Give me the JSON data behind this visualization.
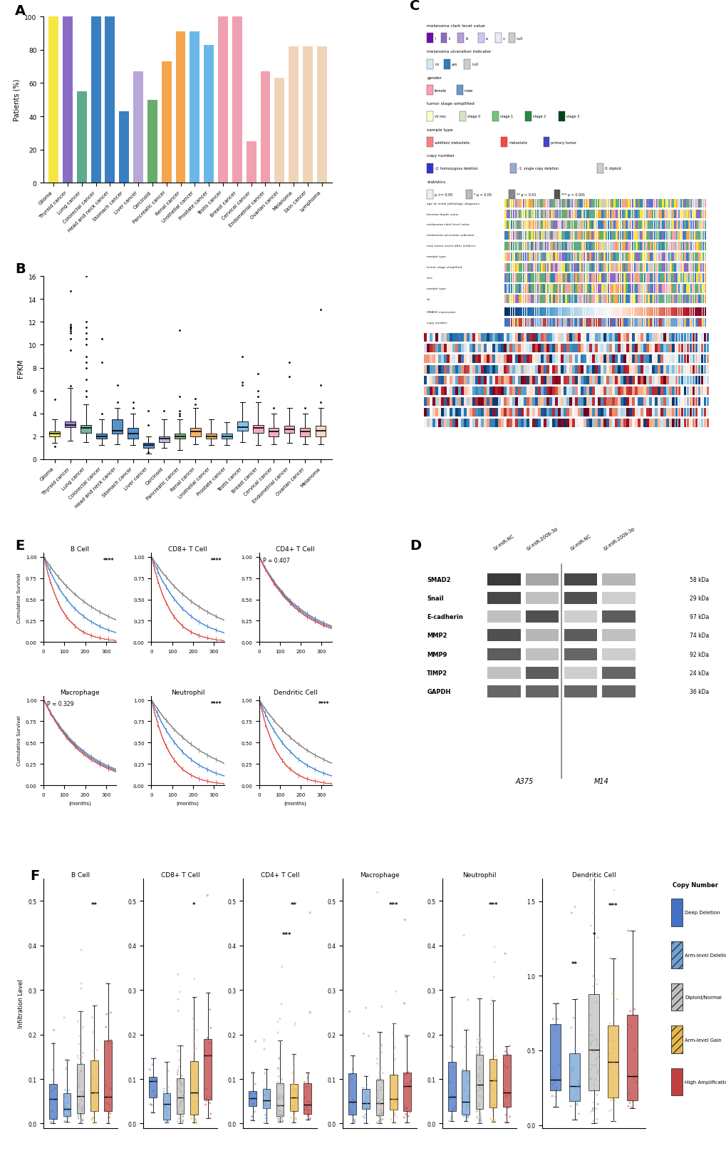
{
  "panel_A": {
    "categories": [
      "Glioma",
      "Thyroid cancer",
      "Lung cancer",
      "Colorectal cancer",
      "Head and neck cancer",
      "Stomach cancer",
      "Liver cancer",
      "Carcinoid",
      "Pancreatic cancer",
      "Renal cancer",
      "Urothelial cancer",
      "Prostate cancer",
      "Testis cancer",
      "Breast cancer",
      "Cervical cancer",
      "Endometrial cancer",
      "Ovarian cancer",
      "Melanoma",
      "Skin cancer",
      "Lymphoma"
    ],
    "values": [
      100,
      100,
      55,
      100,
      100,
      43,
      67,
      50,
      73,
      91,
      91,
      83,
      100,
      100,
      25,
      67,
      63,
      82,
      82,
      82
    ],
    "colors": [
      "#f5e642",
      "#8b6cc4",
      "#5dab8c",
      "#3a7fc1",
      "#3a7fc1",
      "#3a7fc1",
      "#b8a8d8",
      "#6aad6a",
      "#f5a64d",
      "#f5a64d",
      "#6ab8e8",
      "#6ab8e8",
      "#f0a0b0",
      "#f0a0b0",
      "#f0a0b0",
      "#f0a0b0",
      "#f0d4ba",
      "#f0d4ba",
      "#f0d4ba",
      "#f0d4ba"
    ],
    "ylabel": "Patients (%)",
    "ylim": [
      0,
      100
    ]
  },
  "panel_B": {
    "categories": [
      "Glioma",
      "Thyroid cancer",
      "Lung cancer",
      "Colorectal cancer",
      "Head and neck cancer",
      "Stomach cancer",
      "Liver cancer",
      "Carcinoid",
      "Pancreatic cancer",
      "Renal cancer",
      "Urothelial cancer",
      "Prostate cancer",
      "Testis cancer",
      "Breast cancer",
      "Cervical cancer",
      "Endometrial cancer",
      "Ovarian cancer",
      "Melanoma"
    ],
    "colors": [
      "#f5e642",
      "#8b6cc4",
      "#5dab8c",
      "#3a7fc1",
      "#3a7fc1",
      "#3a7fc1",
      "#3a7fc1",
      "#b8a8d8",
      "#6aad6a",
      "#f5a64d",
      "#f5a64d",
      "#6ab8e8",
      "#6ab8e8",
      "#f0a0b0",
      "#f0a0b0",
      "#f0a0b0",
      "#f0a0b0",
      "#f0d4ba"
    ],
    "box_data": {
      "Glioma": {
        "q1": 2.0,
        "median": 2.2,
        "q3": 2.4,
        "whislo": 1.4,
        "whishi": 3.5,
        "fliers": [
          1.1,
          5.2
        ]
      },
      "Thyroid cancer": {
        "q1": 2.8,
        "median": 3.0,
        "q3": 3.3,
        "whislo": 1.6,
        "whishi": 6.2,
        "fliers": [
          6.4,
          9.5,
          10.5,
          11.0,
          11.2,
          11.4,
          11.5,
          11.6,
          11.8,
          14.7
        ]
      },
      "Lung cancer": {
        "q1": 2.3,
        "median": 2.7,
        "q3": 3.0,
        "whislo": 1.5,
        "whishi": 4.8,
        "fliers": [
          5.5,
          6.0,
          7.0,
          8.0,
          8.5,
          9.0,
          10.0,
          10.5,
          11.0,
          11.5,
          12.0,
          16.0
        ]
      },
      "Colorectal cancer": {
        "q1": 1.8,
        "median": 2.0,
        "q3": 2.2,
        "whislo": 1.2,
        "whishi": 3.5,
        "fliers": [
          4.0,
          8.5,
          10.5
        ]
      },
      "Head and neck cancer": {
        "q1": 2.2,
        "median": 2.5,
        "q3": 3.5,
        "whislo": 1.3,
        "whishi": 4.5,
        "fliers": [
          5.0,
          6.5
        ]
      },
      "Stomach cancer": {
        "q1": 1.8,
        "median": 2.2,
        "q3": 2.7,
        "whislo": 1.2,
        "whishi": 4.0,
        "fliers": [
          4.5,
          5.0
        ]
      },
      "Liver cancer": {
        "q1": 1.0,
        "median": 1.2,
        "q3": 1.4,
        "whislo": 0.5,
        "whishi": 2.0,
        "fliers": [
          0.6,
          3.0,
          4.2
        ]
      },
      "Carcinoid": {
        "q1": 1.5,
        "median": 1.8,
        "q3": 2.0,
        "whislo": 1.0,
        "whishi": 3.5,
        "fliers": [
          4.2
        ]
      },
      "Pancreatic cancer": {
        "q1": 1.8,
        "median": 2.0,
        "q3": 2.2,
        "whislo": 0.8,
        "whishi": 3.5,
        "fliers": [
          3.8,
          4.0,
          4.2,
          5.5,
          11.3
        ]
      },
      "Renal cancer": {
        "q1": 2.0,
        "median": 2.4,
        "q3": 2.7,
        "whislo": 1.3,
        "whishi": 4.5,
        "fliers": [
          4.8,
          5.3
        ]
      },
      "Urothelial cancer": {
        "q1": 1.8,
        "median": 2.0,
        "q3": 2.2,
        "whislo": 1.2,
        "whishi": 3.5,
        "fliers": []
      },
      "Prostate cancer": {
        "q1": 1.8,
        "median": 2.0,
        "q3": 2.2,
        "whislo": 1.2,
        "whishi": 3.2,
        "fliers": []
      },
      "Testis cancer": {
        "q1": 2.5,
        "median": 2.8,
        "q3": 3.3,
        "whislo": 1.5,
        "whishi": 5.0,
        "fliers": [
          6.5,
          6.7,
          9.0
        ]
      },
      "Breast cancer": {
        "q1": 2.3,
        "median": 2.7,
        "q3": 3.0,
        "whislo": 1.2,
        "whishi": 5.0,
        "fliers": [
          5.5,
          6.0,
          7.5
        ]
      },
      "Cervical cancer": {
        "q1": 2.0,
        "median": 2.4,
        "q3": 2.7,
        "whislo": 1.3,
        "whishi": 4.0,
        "fliers": [
          4.5
        ]
      },
      "Endometrial cancer": {
        "q1": 2.3,
        "median": 2.6,
        "q3": 2.9,
        "whislo": 1.4,
        "whishi": 4.5,
        "fliers": [
          7.2,
          8.5
        ]
      },
      "Ovarian cancer": {
        "q1": 2.0,
        "median": 2.4,
        "q3": 2.7,
        "whislo": 1.3,
        "whishi": 4.0,
        "fliers": [
          4.5
        ]
      },
      "Melanoma": {
        "q1": 2.0,
        "median": 2.5,
        "q3": 2.9,
        "whislo": 1.3,
        "whishi": 4.5,
        "fliers": [
          5.0,
          6.5,
          13.1
        ]
      }
    },
    "ylabel": "FPKM",
    "ylim": [
      0,
      16.0
    ],
    "yticks": [
      0.0,
      2.0,
      4.0,
      6.0,
      8.0,
      10.0,
      12.0,
      14.0,
      16.0
    ]
  },
  "panel_C": {
    "legend_rows": [
      {
        "label": "melanoma clark level value",
        "items": [
          "i",
          "ii",
          "iii",
          "iv",
          "v",
          "null"
        ],
        "colors": [
          "#6a0dad",
          "#8b6cc4",
          "#b39ddb",
          "#d4c5f0",
          "#ede7f6",
          "#cccccc"
        ]
      },
      {
        "label": "melanoma ulceration indicator",
        "items": [
          "no",
          "yes",
          "null"
        ],
        "colors": [
          "#d4e6f1",
          "#2980b9",
          "#cccccc"
        ]
      },
      {
        "label": "gender",
        "items": [
          "female",
          "male"
        ],
        "colors": [
          "#ff9eb5",
          "#6699cc"
        ]
      },
      {
        "label": "tumor stage simplified",
        "items": [
          "vii nos",
          "stage 0",
          "stage 1",
          "stage 2",
          "stage 3"
        ],
        "colors": [
          "#ffffcc",
          "#d4e6c3",
          "#74c476",
          "#238b45",
          "#00441b"
        ]
      },
      {
        "label": "sample type",
        "items": [
          "addition/ metastatic",
          "metastatic",
          "primary tumor"
        ],
        "colors": [
          "#ff7f7f",
          "#ff4444",
          "#4444cc"
        ]
      },
      {
        "label": "copy number",
        "items": [
          "-2: homozygous deletion",
          "-1: single copy deletion",
          "0: diploid"
        ],
        "colors": [
          "#3333cc",
          "#99aacc",
          "#cccccc"
        ]
      },
      {
        "label": "statistics",
        "items": [
          "p >= 0.05",
          "* p < 0.05",
          "** p < 0.01",
          "*** p < 0.001"
        ],
        "colors": [
          "#eeeeee",
          "#bbbbbb",
          "#888888",
          "#555555"
        ]
      }
    ],
    "heatmap_rows": [
      "age at initial pathologic diagnosis",
      "breslow depth value",
      "melanoma clark level value",
      "melanoma ulceration indicator",
      "new tumor event after initial tx",
      "sample type",
      "tumor stage simplified",
      "cms",
      "sample type",
      "os"
    ]
  },
  "panel_E": {
    "cells": [
      "B Cell",
      "CD8+ T Cell",
      "CD4+ T Cell",
      "Macrophage",
      "Neutrophil",
      "Dendritic Cell"
    ],
    "p_values": [
      "****",
      "****",
      "P = 0.407",
      "P = 0.329",
      "****",
      "****"
    ]
  },
  "panel_F": {
    "cells": [
      "B Cell",
      "CD8+ T Cell",
      "CD4+ T Cell",
      "Macrophage",
      "Neutrophil",
      "Dendritic Cell"
    ],
    "copy_number_legend": [
      "Deep Deletion",
      "Arm-level Deletion",
      "Diploid/Normal",
      "Arm-level Gain",
      "High Amplification"
    ],
    "copy_number_colors": [
      "#4472c4",
      "#70a0d4",
      "#c0c0c0",
      "#e8b84b",
      "#c04040"
    ],
    "ylabel": "Infiltration Level"
  },
  "background_color": "#ffffff",
  "panel_label_fontsize": 14
}
